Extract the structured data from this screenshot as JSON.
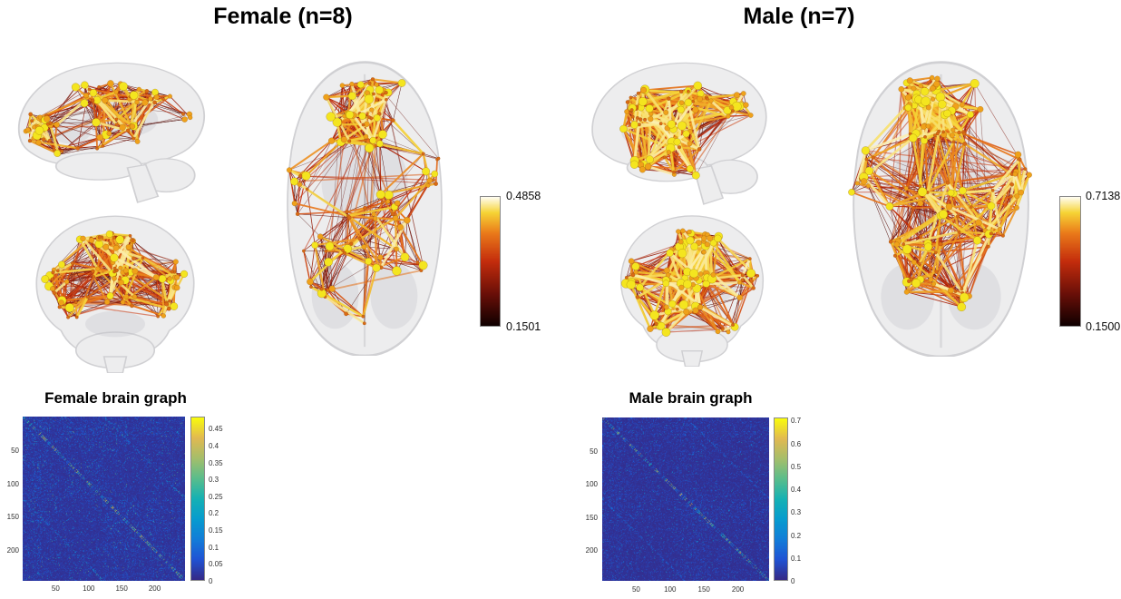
{
  "figure": {
    "panels": [
      {
        "title": "Female (n=8)",
        "cbar_max": "0.4858",
        "cbar_min": "0.1501",
        "matrix_title": "Female brain graph",
        "matrix_x_ticks": [
          "50",
          "100",
          "150",
          "200"
        ],
        "matrix_y_ticks": [
          "50",
          "100",
          "150",
          "200"
        ],
        "matrix_cbar_ticks": [
          "0.45",
          "0.4",
          "0.35",
          "0.3",
          "0.25",
          "0.2",
          "0.15",
          "0.1",
          "0.05",
          "0"
        ],
        "matrix_cbar_max": 0.4858
      },
      {
        "title": "Male (n=7)",
        "cbar_max": "0.7138",
        "cbar_min": "0.1500",
        "matrix_title": "Male brain graph",
        "matrix_x_ticks": [
          "50",
          "100",
          "150",
          "200"
        ],
        "matrix_y_ticks": [
          "50",
          "100",
          "150",
          "200"
        ],
        "matrix_cbar_ticks": [
          "0.7",
          "0.6",
          "0.5",
          "0.4",
          "0.3",
          "0.2",
          "0.1",
          "0"
        ],
        "matrix_cbar_max": 0.7138
      }
    ]
  },
  "chart_data": [
    {
      "type": "other",
      "subtype": "3d_brain_connectivity_network",
      "title": "Female (n=8)",
      "views": [
        "sagittal-lateral",
        "coronal-anterior",
        "axial-superior"
      ],
      "colormap": "hot (black-red-orange-yellow-white)",
      "edge_weight_min": 0.1501,
      "edge_weight_max": 0.4858,
      "colorbar_tick_labels": [
        "0.4858",
        "0.1501"
      ],
      "node_style": "spherical nodes colored orange to yellow, size proportional to strength",
      "layout_note": "dense frontal/parietal connectivity, sparser posterior regions"
    },
    {
      "type": "heatmap",
      "title": "Female brain graph",
      "n_regions_approx": 246,
      "x_ticks": [
        50,
        100,
        150,
        200
      ],
      "y_ticks": [
        50,
        100,
        150,
        200
      ],
      "value_range": [
        0,
        0.4858
      ],
      "colorbar_ticks": [
        0.45,
        0.4,
        0.35,
        0.3,
        0.25,
        0.2,
        0.15,
        0.1,
        0.05,
        0
      ],
      "colormap": "parula",
      "pattern": "mostly near-zero (dark blue) sparse connectivity matrix with scattered cyan/green speckles, bright main diagonal band, faint homotopic off-diagonal and modular block structure"
    },
    {
      "type": "other",
      "subtype": "3d_brain_connectivity_network",
      "title": "Male (n=7)",
      "views": [
        "sagittal-lateral",
        "coronal-anterior",
        "axial-superior"
      ],
      "colormap": "hot (black-red-orange-yellow-white)",
      "edge_weight_min": 0.15,
      "edge_weight_max": 0.7138,
      "colorbar_tick_labels": [
        "0.7138",
        "0.1500"
      ],
      "node_style": "spherical nodes colored orange to yellow, size proportional to strength",
      "layout_note": "denser overall connectivity than female panel with strong yellow frontal cluster"
    },
    {
      "type": "heatmap",
      "title": "Male brain graph",
      "n_regions_approx": 246,
      "x_ticks": [
        50,
        100,
        150,
        200
      ],
      "y_ticks": [
        50,
        100,
        150,
        200
      ],
      "value_range": [
        0,
        0.7138
      ],
      "colorbar_ticks": [
        0.7,
        0.6,
        0.5,
        0.4,
        0.3,
        0.2,
        0.1,
        0
      ],
      "colormap": "parula",
      "pattern": "mostly near-zero (dark blue) sparse connectivity matrix with scattered cyan/green speckles, bright main diagonal band, faint homotopic off-diagonal and modular block structure"
    }
  ],
  "render": {
    "colormap_hot": [
      [
        0,
        "#100000"
      ],
      [
        0.25,
        "#6b0f08"
      ],
      [
        0.5,
        "#c42d0c"
      ],
      [
        0.72,
        "#ea7a1a"
      ],
      [
        0.88,
        "#f6d435"
      ],
      [
        1,
        "#fffdf0"
      ]
    ],
    "colormap_parula": [
      [
        0,
        "#352a87"
      ],
      [
        0.125,
        "#2053d4"
      ],
      [
        0.25,
        "#127dd8"
      ],
      [
        0.375,
        "#079ccf"
      ],
      [
        0.5,
        "#15b1b4"
      ],
      [
        0.625,
        "#59bd8c"
      ],
      [
        0.75,
        "#a5be6b"
      ],
      [
        0.875,
        "#e1b952"
      ],
      [
        1,
        "#f9fb0e"
      ]
    ],
    "node_colors": [
      "#d96a14",
      "#efa11a",
      "#f4e51f"
    ],
    "matrix": [
      {
        "seed": 101,
        "boost": 1.0
      },
      {
        "seed": 202,
        "boost": 1.15
      }
    ],
    "views": [
      [
        {
          "kind": "sagittal",
          "seed": 11,
          "edgeP": 0.5,
          "maxDist": 0.26,
          "longP": 0.01,
          "wExp": 2.1,
          "clusters": [
            [
              0.17,
              0.44,
              0.07,
              0.12,
              26
            ],
            [
              0.42,
              0.26,
              0.1,
              0.07,
              16
            ],
            [
              0.66,
              0.28,
              0.1,
              0.07,
              15
            ],
            [
              0.55,
              0.5,
              0.12,
              0.08,
              13
            ],
            [
              0.35,
              0.63,
              0.1,
              0.06,
              7
            ],
            [
              0.87,
              0.4,
              0.04,
              0.05,
              4
            ]
          ]
        },
        {
          "kind": "coronal",
          "seed": 22,
          "edgeP": 0.55,
          "maxDist": 0.28,
          "longP": 0.03,
          "wExp": 1.9,
          "horiz": true,
          "clusters": [
            [
              0.5,
              0.2,
              0.16,
              0.06,
              26
            ],
            [
              0.5,
              0.38,
              0.12,
              0.07,
              22
            ],
            [
              0.2,
              0.4,
              0.06,
              0.09,
              12
            ],
            [
              0.8,
              0.4,
              0.06,
              0.09,
              12
            ],
            [
              0.22,
              0.6,
              0.06,
              0.05,
              7
            ],
            [
              0.78,
              0.6,
              0.06,
              0.05,
              7
            ],
            [
              0.5,
              0.56,
              0.18,
              0.04,
              8
            ]
          ]
        },
        {
          "kind": "axial",
          "seed": 33,
          "edgeP": 0.5,
          "maxDist": 0.2,
          "longP": 0.008,
          "wExp": 2.0,
          "horiz": true,
          "clusters": [
            [
              0.5,
              0.11,
              0.15,
              0.03,
              20
            ],
            [
              0.5,
              0.2,
              0.17,
              0.03,
              20
            ],
            [
              0.48,
              0.29,
              0.18,
              0.025,
              14
            ],
            [
              0.15,
              0.43,
              0.05,
              0.08,
              9
            ],
            [
              0.85,
              0.39,
              0.05,
              0.07,
              9
            ],
            [
              0.5,
              0.51,
              0.19,
              0.05,
              16
            ],
            [
              0.35,
              0.63,
              0.13,
              0.05,
              12
            ],
            [
              0.65,
              0.69,
              0.12,
              0.05,
              10
            ],
            [
              0.3,
              0.78,
              0.09,
              0.035,
              7
            ],
            [
              0.5,
              0.875,
              0.1,
              0.015,
              3
            ]
          ]
        }
      ],
      [
        {
          "kind": "sagittal",
          "seed": 44,
          "edgeP": 0.62,
          "maxDist": 0.3,
          "longP": 0.03,
          "wExp": 1.5,
          "clusters": [
            [
              0.3,
              0.34,
              0.09,
              0.12,
              23
            ],
            [
              0.56,
              0.28,
              0.11,
              0.08,
              17
            ],
            [
              0.8,
              0.33,
              0.06,
              0.08,
              14
            ],
            [
              0.45,
              0.56,
              0.12,
              0.1,
              18
            ],
            [
              0.3,
              0.72,
              0.07,
              0.04,
              6
            ],
            [
              0.56,
              0.76,
              0.07,
              0.035,
              5
            ]
          ]
        },
        {
          "kind": "coronal",
          "seed": 55,
          "edgeP": 0.72,
          "maxDist": 0.3,
          "longP": 0.045,
          "wExp": 1.35,
          "horiz": true,
          "bigTop": true,
          "clusters": [
            [
              0.5,
              0.22,
              0.15,
              0.08,
              28
            ],
            [
              0.5,
              0.44,
              0.17,
              0.06,
              24
            ],
            [
              0.17,
              0.44,
              0.05,
              0.1,
              10
            ],
            [
              0.83,
              0.44,
              0.05,
              0.1,
              10
            ],
            [
              0.5,
              0.62,
              0.18,
              0.045,
              12
            ],
            [
              0.3,
              0.76,
              0.08,
              0.03,
              5
            ],
            [
              0.7,
              0.76,
              0.08,
              0.03,
              5
            ]
          ]
        },
        {
          "kind": "axial",
          "seed": 66,
          "edgeP": 0.58,
          "maxDist": 0.22,
          "longP": 0.018,
          "wExp": 1.45,
          "horiz": true,
          "bigTop": true,
          "clusters": [
            [
              0.5,
              0.09,
              0.13,
              0.025,
              14
            ],
            [
              0.5,
              0.17,
              0.16,
              0.035,
              22
            ],
            [
              0.5,
              0.26,
              0.18,
              0.03,
              20
            ],
            [
              0.15,
              0.41,
              0.05,
              0.08,
              10
            ],
            [
              0.85,
              0.42,
              0.05,
              0.08,
              12
            ],
            [
              0.5,
              0.48,
              0.19,
              0.055,
              18
            ],
            [
              0.35,
              0.61,
              0.13,
              0.05,
              12
            ],
            [
              0.7,
              0.59,
              0.1,
              0.05,
              10
            ],
            [
              0.4,
              0.74,
              0.14,
              0.04,
              12
            ],
            [
              0.6,
              0.81,
              0.11,
              0.03,
              8
            ]
          ]
        }
      ]
    ]
  }
}
